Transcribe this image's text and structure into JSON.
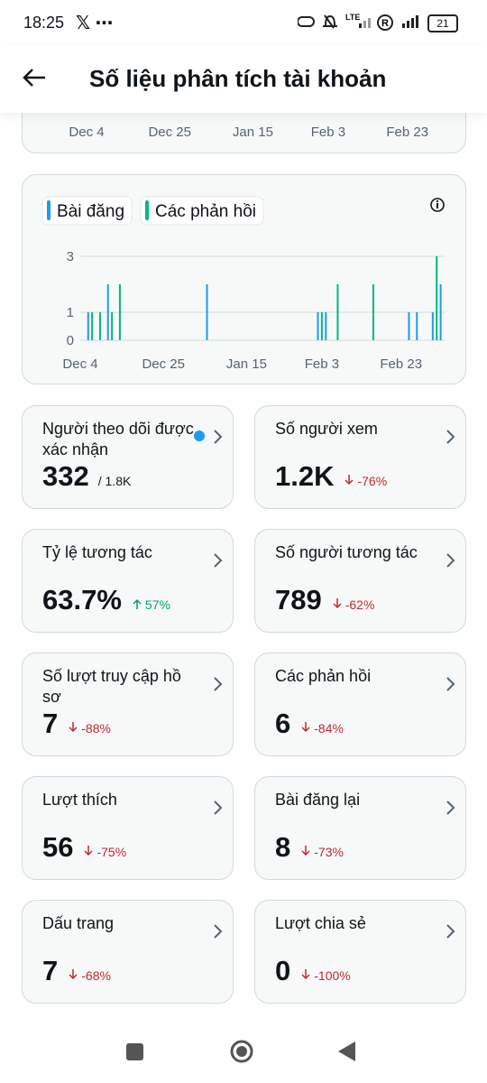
{
  "status_bar": {
    "time": "18:25",
    "network": "LTE",
    "battery": "21"
  },
  "header": {
    "title": "Số liệu phân tích tài khoản"
  },
  "top_chart": {
    "xticks": [
      "Dec 4",
      "Dec 25",
      "Jan 15",
      "Feb 3",
      "Feb 23"
    ]
  },
  "chart_data": {
    "type": "bar",
    "xticks": [
      "Dec 4",
      "Dec 25",
      "Jan 15",
      "Feb 3",
      "Feb 23"
    ],
    "xlim": [
      "Dec 4",
      "Mar 6"
    ],
    "ylim": [
      0,
      3
    ],
    "yticks": [
      0,
      1,
      3
    ],
    "grid": true,
    "series": [
      {
        "name": "Bài đăng",
        "color": "#1d9bf0",
        "x": [
          "Dec 6",
          "Dec 11",
          "Jan 5",
          "Feb 2",
          "Feb 4",
          "Feb 25",
          "Feb 27",
          "Mar 3",
          "Mar 5"
        ],
        "values": [
          1,
          2,
          2,
          1,
          1,
          1,
          1,
          1,
          2
        ]
      },
      {
        "name": "Các phản hồi",
        "color": "#00ba7c",
        "x": [
          "Dec 7",
          "Dec 9",
          "Dec 12",
          "Dec 14",
          "Feb 3",
          "Feb 7",
          "Feb 16",
          "Mar 4"
        ],
        "values": [
          1,
          1,
          1,
          2,
          1,
          2,
          2,
          3
        ]
      }
    ]
  },
  "metrics": [
    {
      "label": "Người theo dõi được xác nhận",
      "value": "332",
      "sub": "/ 1.8K"
    },
    {
      "label": "Số người xem",
      "value": "1.2K",
      "change": "-76%"
    },
    {
      "label": "Tỷ lệ tương tác",
      "value": "63.7%",
      "change": "57%"
    },
    {
      "label": "Số người tương tác",
      "value": "789",
      "change": "-62%"
    },
    {
      "label": "Số lượt truy cập hồ sơ",
      "value": "7",
      "change": "-88%"
    },
    {
      "label": "Các phản hồi",
      "value": "6",
      "change": "-84%"
    },
    {
      "label": "Lượt thích",
      "value": "56",
      "change": "-75%"
    },
    {
      "label": "Bài đăng lại",
      "value": "8",
      "change": "-73%"
    },
    {
      "label": "Dấu trang",
      "value": "7",
      "change": "-68%"
    },
    {
      "label": "Lượt chia sẻ",
      "value": "0",
      "change": "-100%"
    }
  ]
}
